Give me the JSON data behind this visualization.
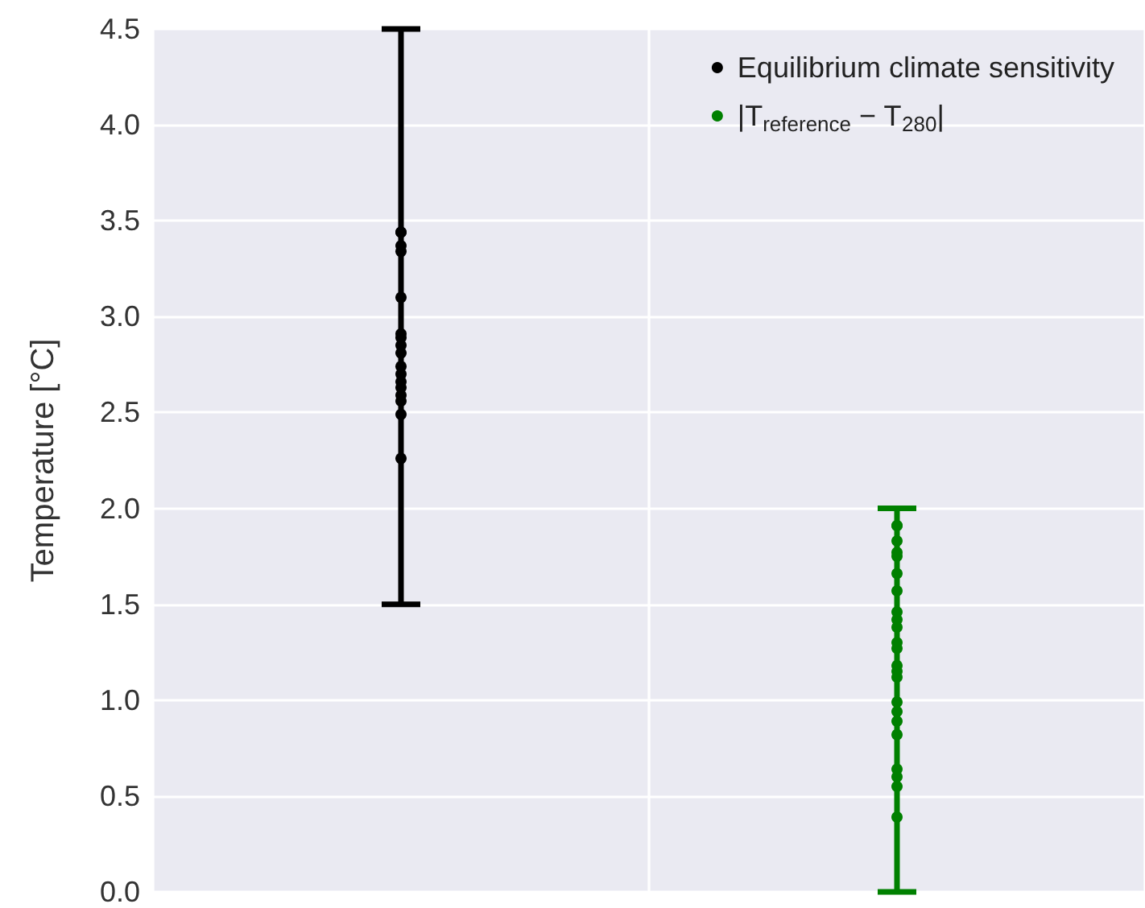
{
  "chart_data": {
    "type": "scatter",
    "ylabel": "Temperature [°C]",
    "categories": [
      null,
      null
    ],
    "ylim": [
      0,
      4.5
    ],
    "yticks": [
      {
        "value": 0,
        "label": "0.0"
      },
      {
        "value": 0.5,
        "label": "0.5"
      },
      {
        "value": 1,
        "label": "1.0"
      },
      {
        "value": 1.5,
        "label": "1.5"
      },
      {
        "value": 2,
        "label": "2.0"
      },
      {
        "value": 2.5,
        "label": "2.5"
      },
      {
        "value": 3,
        "label": "3.0"
      },
      {
        "value": 3.5,
        "label": "3.5"
      },
      {
        "value": 4,
        "label": "4.0"
      },
      {
        "value": 4.5,
        "label": "4.5"
      }
    ],
    "grid": true,
    "legend": "top right",
    "marker": "circle",
    "series": [
      {
        "name": "Equilibrium climate sensitivity",
        "color": "#000000",
        "values": [
          3.44,
          null
        ],
        "errors": [
          [
            1.5,
            4.5
          ],
          null
        ]
      },
      {
        "color": "#000000",
        "values": [
          3.37,
          null
        ]
      },
      {
        "color": "#000000",
        "values": [
          3.34,
          null
        ]
      },
      {
        "color": "#000000",
        "values": [
          3.1,
          null
        ]
      },
      {
        "color": "#000000",
        "values": [
          2.91,
          null
        ]
      },
      {
        "color": "#000000",
        "values": [
          2.89,
          null
        ]
      },
      {
        "color": "#000000",
        "values": [
          2.85,
          null
        ]
      },
      {
        "color": "#000000",
        "values": [
          2.81,
          null
        ]
      },
      {
        "color": "#000000",
        "values": [
          2.74,
          null
        ]
      },
      {
        "color": "#000000",
        "values": [
          2.7,
          null
        ]
      },
      {
        "color": "#000000",
        "values": [
          2.66,
          null
        ]
      },
      {
        "color": "#000000",
        "values": [
          2.63,
          null
        ]
      },
      {
        "color": "#000000",
        "values": [
          2.59,
          null
        ]
      },
      {
        "color": "#000000",
        "values": [
          2.56,
          null
        ]
      },
      {
        "color": "#000000",
        "values": [
          2.49,
          null
        ]
      },
      {
        "color": "#000000",
        "values": [
          2.26,
          null
        ]
      },
      {
        "name": "|T$_{reference}$ − T$_{280}$|",
        "color": "#008000",
        "values": [
          null,
          1.91
        ],
        "errors": [
          null,
          [
            0,
            2
          ]
        ]
      },
      {
        "color": "#008000",
        "values": [
          null,
          1.83
        ]
      },
      {
        "color": "#008000",
        "values": [
          null,
          1.77
        ]
      },
      {
        "color": "#008000",
        "values": [
          null,
          1.75
        ]
      },
      {
        "color": "#008000",
        "values": [
          null,
          1.66
        ]
      },
      {
        "color": "#008000",
        "values": [
          null,
          1.57
        ]
      },
      {
        "color": "#008000",
        "values": [
          null,
          1.46
        ]
      },
      {
        "color": "#008000",
        "values": [
          null,
          1.42
        ]
      },
      {
        "color": "#008000",
        "values": [
          null,
          1.38
        ]
      },
      {
        "color": "#008000",
        "values": [
          null,
          1.3
        ]
      },
      {
        "color": "#008000",
        "values": [
          null,
          1.27
        ]
      },
      {
        "color": "#008000",
        "values": [
          null,
          1.18
        ]
      },
      {
        "color": "#008000",
        "values": [
          null,
          1.15
        ]
      },
      {
        "color": "#008000",
        "values": [
          null,
          1.12
        ]
      },
      {
        "color": "#008000",
        "values": [
          null,
          0.99
        ]
      },
      {
        "color": "#008000",
        "values": [
          null,
          0.94
        ]
      },
      {
        "color": "#008000",
        "values": [
          null,
          0.89
        ]
      },
      {
        "color": "#008000",
        "values": [
          null,
          0.82
        ]
      },
      {
        "color": "#008000",
        "values": [
          null,
          0.64
        ]
      },
      {
        "color": "#008000",
        "values": [
          null,
          0.6
        ]
      },
      {
        "color": "#008000",
        "values": [
          null,
          0.55
        ]
      },
      {
        "color": "#008000",
        "values": [
          null,
          0.39
        ]
      }
    ]
  }
}
